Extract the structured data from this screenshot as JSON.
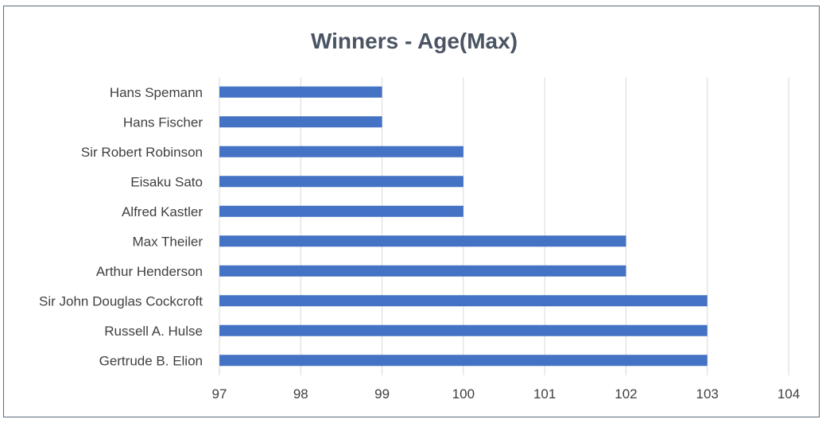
{
  "chart_data": {
    "type": "bar",
    "orientation": "horizontal",
    "title": "Winners - Age(Max)",
    "xlabel": "",
    "ylabel": "",
    "categories": [
      "Hans Spemann",
      "Hans Fischer",
      "Sir Robert Robinson",
      "Eisaku Sato",
      "Alfred Kastler",
      "Max Theiler",
      "Arthur Henderson",
      "Sir John Douglas Cockcroft",
      "Russell A. Hulse",
      "Gertrude B. Elion"
    ],
    "values": [
      99,
      99,
      100,
      100,
      100,
      102,
      102,
      103,
      103,
      103
    ],
    "xlim": [
      97,
      104
    ],
    "xticks": [
      "97",
      "98",
      "99",
      "100",
      "101",
      "102",
      "103",
      "104"
    ],
    "grid": "vertical",
    "legend": "none",
    "bar_color": "#4472c4",
    "grid_color": "#d9d9d9"
  }
}
